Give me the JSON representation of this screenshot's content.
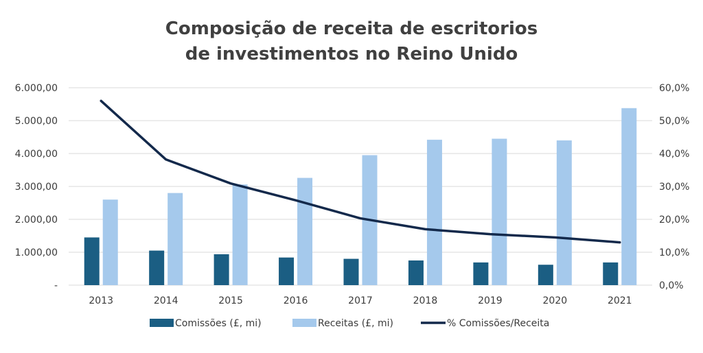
{
  "chart_data": {
    "type": "bar",
    "title_lines": [
      "Composição de receita de escritorios",
      "de investimentos no Reino Unido"
    ],
    "categories": [
      "2013",
      "2014",
      "2015",
      "2016",
      "2017",
      "2018",
      "2019",
      "2020",
      "2021"
    ],
    "series": [
      {
        "name": "Comissões (£, mi)",
        "type": "bar",
        "axis": "left",
        "color": "#1b5e83",
        "values": [
          1450,
          1050,
          940,
          840,
          800,
          750,
          690,
          620,
          690
        ]
      },
      {
        "name": "Receitas (£, mi)",
        "type": "bar",
        "axis": "left",
        "color": "#a5c9ec",
        "values": [
          2600,
          2800,
          3060,
          3260,
          3950,
          4420,
          4450,
          4400,
          5380
        ]
      },
      {
        "name": "% Comissões/Receita",
        "type": "line",
        "axis": "right",
        "color": "#13294b",
        "values": [
          56.0,
          38.2,
          30.9,
          25.8,
          20.3,
          17.0,
          15.5,
          14.5,
          13.0
        ]
      }
    ],
    "y_left": {
      "min": 0,
      "max": 6000,
      "tick_labels": [
        "-",
        "1.000,00",
        "2.000,00",
        "3.000,00",
        "4.000,00",
        "5.000,00",
        "6.000,00"
      ]
    },
    "y_right": {
      "min": 0,
      "max": 60,
      "tick_labels": [
        "0,0%",
        "10,0%",
        "20,0%",
        "30,0%",
        "40,0%",
        "50,0%",
        "60,0%"
      ]
    },
    "grid": true,
    "legend_position": "bottom"
  }
}
